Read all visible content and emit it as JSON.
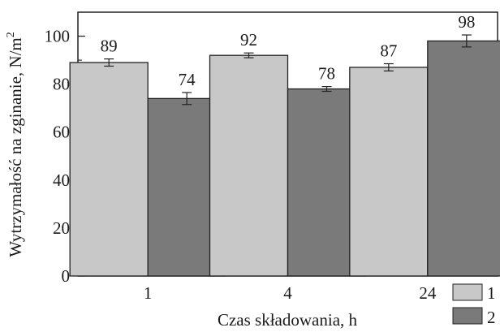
{
  "chart_data": {
    "type": "bar",
    "categories": [
      "1",
      "4",
      "24"
    ],
    "series": [
      {
        "name": "1",
        "values": [
          89,
          92,
          87
        ],
        "errors": [
          1.5,
          1.0,
          1.5
        ],
        "labels": [
          "89",
          "92",
          "87"
        ],
        "color": "#c8c8c8"
      },
      {
        "name": "2",
        "values": [
          74,
          78,
          98
        ],
        "errors": [
          2.5,
          1.0,
          2.5
        ],
        "labels": [
          "74",
          "78",
          "98"
        ],
        "color": "#7a7a7a"
      }
    ],
    "xlabel": "Czas składowania, h",
    "ylabel": "Wytrzymałość na zginanie, N/m",
    "ylabel_sup": "2",
    "ylim": [
      0,
      110
    ],
    "yticks": [
      "0",
      "20",
      "40",
      "60",
      "80",
      "100"
    ],
    "grid": false,
    "legend_position": "bottom-right"
  }
}
